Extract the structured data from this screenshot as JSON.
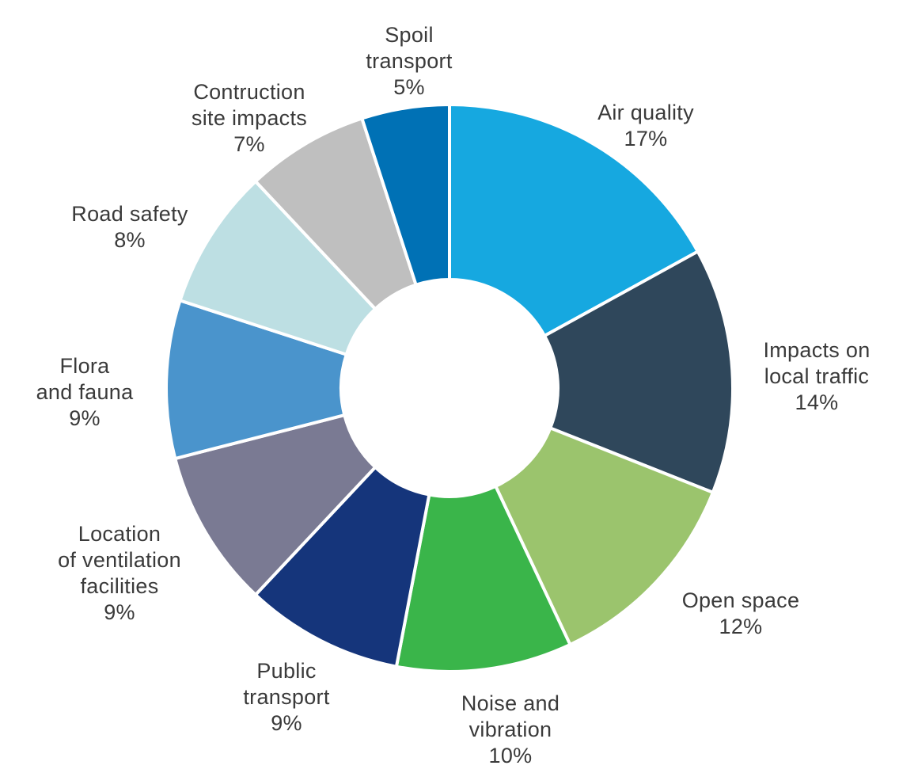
{
  "chart_data": {
    "type": "pie",
    "donut": true,
    "legend": "none",
    "categories": [
      "Air quality",
      "Impacts on local traffic",
      "Open space",
      "Noise and vibration",
      "Public transport",
      "Location of ventilation facilities",
      "Flora and fauna",
      "Road safety",
      "Contruction site impacts",
      "Spoil transport"
    ],
    "values": [
      17,
      14,
      12,
      10,
      9,
      9,
      9,
      8,
      7,
      5
    ],
    "value_labels": [
      "17%",
      "14%",
      "12%",
      "10%",
      "9%",
      "9%",
      "9%",
      "8%",
      "7%",
      "5%"
    ],
    "label_lines": [
      [
        "Air quality"
      ],
      [
        "Impacts on",
        "local traffic"
      ],
      [
        "Open space"
      ],
      [
        "Noise and",
        "vibration"
      ],
      [
        "Public",
        "transport"
      ],
      [
        "Location",
        "of ventilation",
        "facilities"
      ],
      [
        "Flora",
        "and fauna"
      ],
      [
        "Road safety"
      ],
      [
        "Contruction",
        "site impacts"
      ],
      [
        "Spoil",
        "transport"
      ]
    ],
    "colors": [
      "#16a8e0",
      "#2f475b",
      "#9bc46d",
      "#3ab54a",
      "#15357b",
      "#7a7a93",
      "#4a94cc",
      "#bddfe3",
      "#bfbfbf",
      "#0071b5"
    ],
    "title": "",
    "label_color": "#3a3a3a"
  }
}
